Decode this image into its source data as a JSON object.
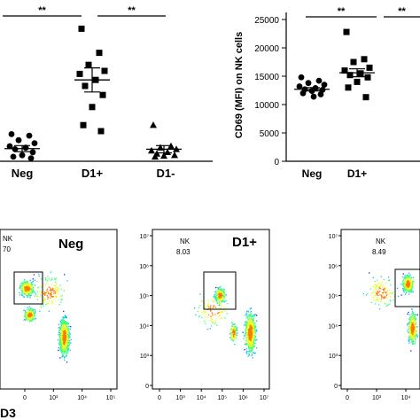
{
  "chart_data": [
    {
      "type": "scatter",
      "categories": [
        "Neg",
        "D1+",
        "D1-"
      ],
      "series": [
        {
          "marker": "circle",
          "category": "Neg",
          "values": [
            0.09,
            0.085,
            0.07,
            0.06,
            0.05,
            0.045,
            0.04,
            0.03,
            0.02,
            0.015,
            0.01
          ]
        },
        {
          "marker": "square",
          "category": "D1+",
          "values": [
            0.44,
            0.36,
            0.32,
            0.3,
            0.29,
            0.27,
            0.25,
            0.22,
            0.18,
            0.12,
            0.1
          ]
        },
        {
          "marker": "triangle",
          "category": "D1-",
          "values": [
            0.12,
            0.05,
            0.045,
            0.04,
            0.035,
            0.03,
            0.025,
            0.02,
            0.018,
            0.015
          ]
        }
      ],
      "means": [
        0.042,
        0.27,
        0.04
      ],
      "sems": [
        0.01,
        0.04,
        0.012
      ],
      "significance": [
        {
          "from": "Neg",
          "to": "D1+",
          "label": "**"
        },
        {
          "from": "D1+",
          "to": "D1-",
          "label": "**"
        }
      ],
      "ylim": [
        0,
        0.5
      ],
      "ylabel": ""
    },
    {
      "type": "scatter",
      "categories": [
        "Neg",
        "D1+"
      ],
      "series": [
        {
          "marker": "circle",
          "category": "Neg",
          "values": [
            14800,
            14200,
            13800,
            13500,
            13200,
            12900,
            12700,
            12600,
            12400,
            12000,
            11800,
            11400
          ]
        },
        {
          "marker": "square",
          "category": "D1+",
          "values": [
            22800,
            18000,
            17500,
            16500,
            16000,
            15500,
            15200,
            14800,
            14000,
            13000,
            11300
          ]
        }
      ],
      "means": [
        12700,
        15600
      ],
      "sems": [
        300,
        700
      ],
      "significance": [
        {
          "from": "Neg",
          "to": "D1+",
          "label": "**"
        },
        {
          "from": "D1+",
          "to": "",
          "label": "**"
        }
      ],
      "ylim": [
        0,
        25000
      ],
      "yticks": [
        "0",
        "5000",
        "10000",
        "15000",
        "20000",
        "25000"
      ],
      "ylabel": "CD69 (MFI) on NK cells"
    }
  ],
  "flow_panels": [
    {
      "title": "Neg",
      "gate_name": "NK",
      "gate_value": "70",
      "y_ticks": [],
      "x_ticks": [
        "0",
        "10³",
        "10⁴",
        "10⁵"
      ],
      "x_axis_label": "D3"
    },
    {
      "title": "D1+",
      "gate_name": "NK",
      "gate_value": "8.03",
      "y_ticks": [
        "0",
        "10³",
        "10⁴",
        "10⁵",
        "10⁶",
        "10⁷"
      ],
      "x_ticks": [
        "0",
        "10³",
        "10⁴",
        "10⁵",
        "10⁶",
        "10⁷"
      ]
    },
    {
      "title": "",
      "gate_name": "NK",
      "gate_value": "8.49",
      "y_ticks": [
        "0",
        "10³",
        "10⁴",
        "10⁵",
        "10⁶",
        "10⁷"
      ],
      "x_ticks": [
        "0",
        "10³",
        "10⁴"
      ]
    }
  ],
  "colors": {
    "ink": "#000000",
    "density": [
      "#1a1aff",
      "#19b7ff",
      "#3cff7a",
      "#e6ff1a",
      "#ff7a00"
    ]
  }
}
